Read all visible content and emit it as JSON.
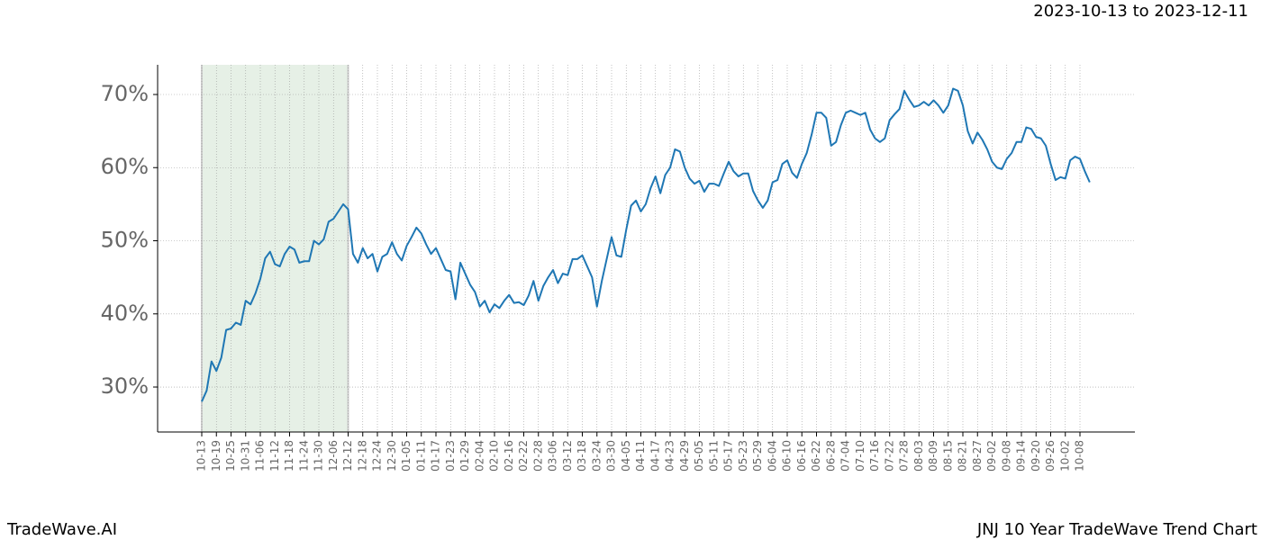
{
  "date_range": "2023-10-13 to 2023-12-11",
  "brand": "TradeWave.AI",
  "chart_title": "JNJ 10 Year TradeWave Trend Chart",
  "chart_data": {
    "type": "line",
    "color": "#1f77b4",
    "grid": true,
    "shaded_span": [
      "10-13",
      "12-12"
    ],
    "shade_color": "#e6f0e6",
    "ylim": [
      23.85,
      74.06
    ],
    "yticks": [
      {
        "value": 30,
        "label": "30%"
      },
      {
        "value": 40,
        "label": "40%"
      },
      {
        "value": 50,
        "label": "50%"
      },
      {
        "value": 60,
        "label": "60%"
      },
      {
        "value": 70,
        "label": "70%"
      }
    ],
    "categories": [
      "10-13",
      null,
      null,
      "10-19",
      null,
      null,
      "10-25",
      null,
      null,
      "10-31",
      null,
      null,
      "11-06",
      null,
      null,
      "11-12",
      null,
      null,
      "11-18",
      null,
      null,
      "11-24",
      null,
      null,
      "11-30",
      null,
      null,
      "12-06",
      null,
      null,
      "12-12",
      null,
      null,
      "12-18",
      null,
      null,
      "12-24",
      null,
      null,
      "12-30",
      null,
      null,
      "01-05",
      null,
      null,
      "01-11",
      null,
      null,
      "01-17",
      null,
      null,
      "01-23",
      null,
      null,
      "01-29",
      null,
      null,
      "02-04",
      null,
      null,
      "02-10",
      null,
      null,
      "02-16",
      null,
      null,
      "02-22",
      null,
      null,
      "02-28",
      null,
      null,
      "03-06",
      null,
      null,
      "03-12",
      null,
      null,
      "03-18",
      null,
      null,
      "03-24",
      null,
      null,
      "03-30",
      null,
      null,
      "04-05",
      null,
      null,
      "04-11",
      null,
      null,
      "04-17",
      null,
      null,
      "04-23",
      null,
      null,
      "04-29",
      null,
      null,
      "05-05",
      null,
      null,
      "05-11",
      null,
      null,
      "05-17",
      null,
      null,
      "05-23",
      null,
      null,
      "05-29",
      null,
      null,
      "06-04",
      null,
      null,
      "06-10",
      null,
      null,
      "06-16",
      null,
      null,
      "06-22",
      null,
      null,
      "06-28",
      null,
      null,
      "07-04",
      null,
      null,
      "07-10",
      null,
      null,
      "07-16",
      null,
      null,
      "07-22",
      null,
      null,
      "07-28",
      null,
      null,
      "08-03",
      null,
      null,
      "08-09",
      null,
      null,
      "08-15",
      null,
      null,
      "08-21",
      null,
      null,
      "08-27",
      null,
      null,
      "09-02",
      null,
      null,
      "09-08",
      null,
      null,
      "09-14",
      null,
      null,
      "09-20",
      null,
      null,
      "09-26",
      null,
      null,
      "10-02",
      null,
      null,
      "10-08",
      null,
      null
    ],
    "values": [
      28.0,
      29.5,
      33.5,
      32.2,
      34,
      37.8,
      38,
      38.8,
      38.5,
      41.8,
      41.3,
      42.8,
      44.8,
      47.6,
      48.5,
      46.8,
      46.5,
      48.2,
      49.2,
      48.8,
      47,
      47.2,
      47.2,
      50,
      49.5,
      50.2,
      52.6,
      53,
      54,
      55,
      54.3,
      48.2,
      47,
      49,
      47.6,
      48.2,
      45.8,
      47.8,
      48.2,
      49.8,
      48.2,
      47.3,
      49.3,
      50.5,
      51.8,
      51,
      49.5,
      48.2,
      49,
      47.5,
      46,
      45.8,
      42,
      47,
      45.5,
      44,
      43,
      41,
      41.8,
      40.2,
      41.3,
      40.8,
      41.8,
      42.6,
      41.5,
      41.6,
      41.2,
      42.5,
      44.5,
      41.8,
      43.8,
      45,
      46,
      44.2,
      45.5,
      45.3,
      47.5,
      47.5,
      48,
      46.5,
      45,
      41,
      44.5,
      47.5,
      50.5,
      48,
      47.8,
      51.5,
      54.8,
      55.5,
      54,
      55,
      57.2,
      58.8,
      56.5,
      59,
      60,
      62.5,
      62.2,
      60,
      58.5,
      57.8,
      58.2,
      56.7,
      57.8,
      57.8,
      57.5,
      59.2,
      60.8,
      59.5,
      58.8,
      59.2,
      59.2,
      56.8,
      55.5,
      54.5,
      55.5,
      58,
      58.3,
      60.5,
      61,
      59.3,
      58.6,
      60.5,
      62,
      64.5,
      67.5,
      67.5,
      66.8,
      63,
      63.5,
      65.8,
      67.5,
      67.8,
      67.5,
      67.2,
      67.5,
      65.2,
      64,
      63.5,
      64,
      66.5,
      67.3,
      68,
      70.5,
      69.3,
      68.3,
      68.5,
      69,
      68.5,
      69.2,
      68.5,
      67.5,
      68.5,
      70.8,
      70.5,
      68.5,
      65,
      63.3,
      64.8,
      63.8,
      62.5,
      60.8,
      60,
      59.8,
      61.2,
      62,
      63.5,
      63.5,
      65.5,
      65.3,
      64.2,
      64,
      63,
      60.5,
      58.3,
      58.7,
      58.5,
      61,
      61.5,
      61.2,
      59.5,
      58
    ]
  }
}
